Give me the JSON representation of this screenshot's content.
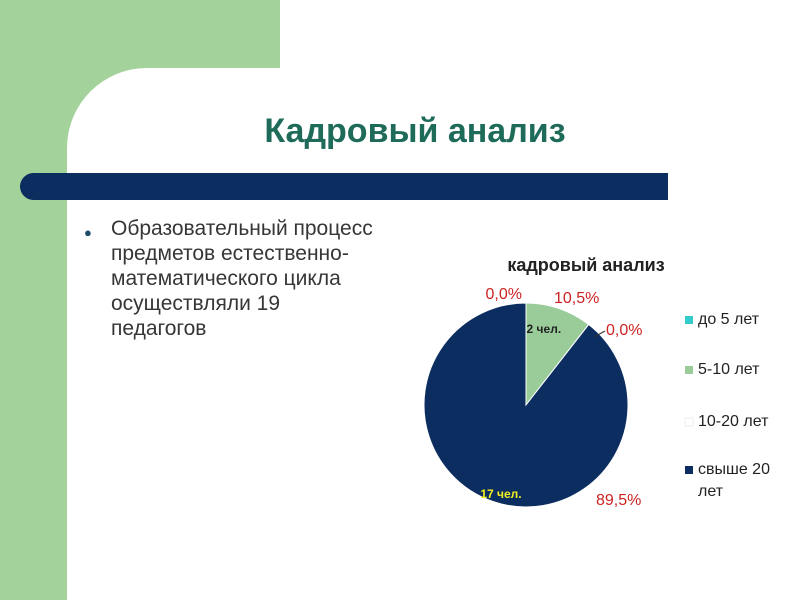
{
  "slide": {
    "title": "Кадровый анализ",
    "bullet_text": "Образовательный процесс предметов естественно-математического цикла осуществляли 19 педагогов"
  },
  "colors": {
    "background_green": "#a3d29a",
    "title_bar": "#0c2d5f",
    "title_text": "#1e6b5a",
    "percent_label": "#cc2222"
  },
  "chart_data": {
    "type": "pie",
    "title": "кадровый анализ",
    "categories": [
      "до 5 лет",
      "5-10 лет",
      "10-20 лет",
      "свыше 20 лет"
    ],
    "values": [
      0,
      2,
      0,
      17
    ],
    "percent_labels": [
      "0,0%",
      "10,5%",
      "0,0%",
      "89,5%"
    ],
    "count_labels": [
      "",
      "2 чел.",
      "",
      "17 чел."
    ],
    "colors": [
      "#33cccc",
      "#99cc99",
      "#ffffff",
      "#0c2d5f"
    ],
    "legend_position": "right"
  }
}
